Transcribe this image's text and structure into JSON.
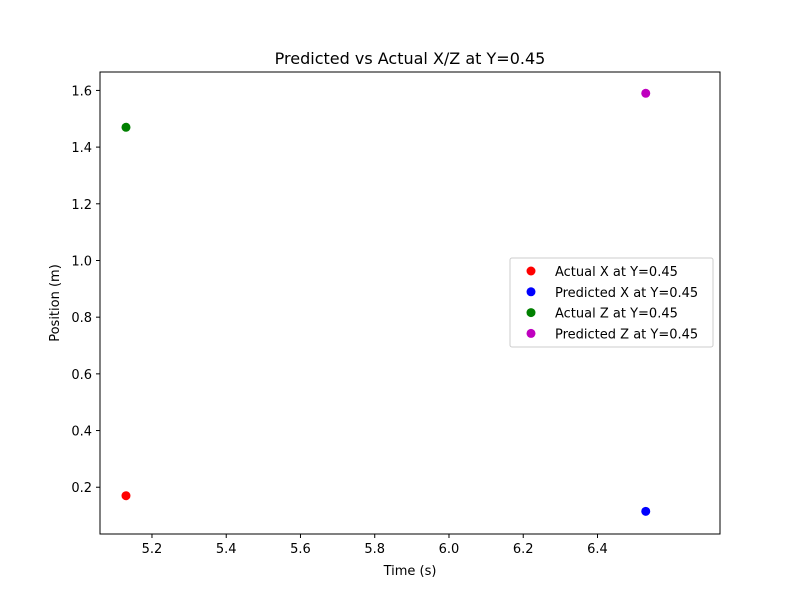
{
  "chart_data": {
    "type": "scatter",
    "title": "Predicted vs Actual X/Z at Y=0.45",
    "xlabel": "Time (s)",
    "ylabel": "Position (m)",
    "xlim": [
      5.06,
      6.73
    ],
    "ylim": [
      0.035,
      1.665
    ],
    "xticks": [
      5.2,
      5.4,
      5.6,
      5.8,
      6.0,
      6.2,
      6.4
    ],
    "xtick_labels": [
      "5.2",
      "5.4",
      "5.6",
      "5.8",
      "6.0",
      "6.2",
      "6.4"
    ],
    "yticks": [
      0.2,
      0.4,
      0.6,
      0.8,
      1.0,
      1.2,
      1.4,
      1.6
    ],
    "ytick_labels": [
      "0.2",
      "0.4",
      "0.6",
      "0.8",
      "1.0",
      "1.2",
      "1.4",
      "1.6"
    ],
    "grid": false,
    "legend_position": "center-right",
    "series": [
      {
        "name": "Actual X at Y=0.45",
        "color": "#ff0000",
        "x": [
          5.13
        ],
        "y": [
          0.17
        ]
      },
      {
        "name": "Predicted X at Y=0.45",
        "color": "#0000ff",
        "x": [
          6.53
        ],
        "y": [
          0.115
        ]
      },
      {
        "name": "Actual Z at Y=0.45",
        "color": "#008000",
        "x": [
          5.13
        ],
        "y": [
          1.47
        ]
      },
      {
        "name": "Predicted Z at Y=0.45",
        "color": "#bf00bf",
        "x": [
          6.53
        ],
        "y": [
          1.59
        ]
      }
    ]
  }
}
